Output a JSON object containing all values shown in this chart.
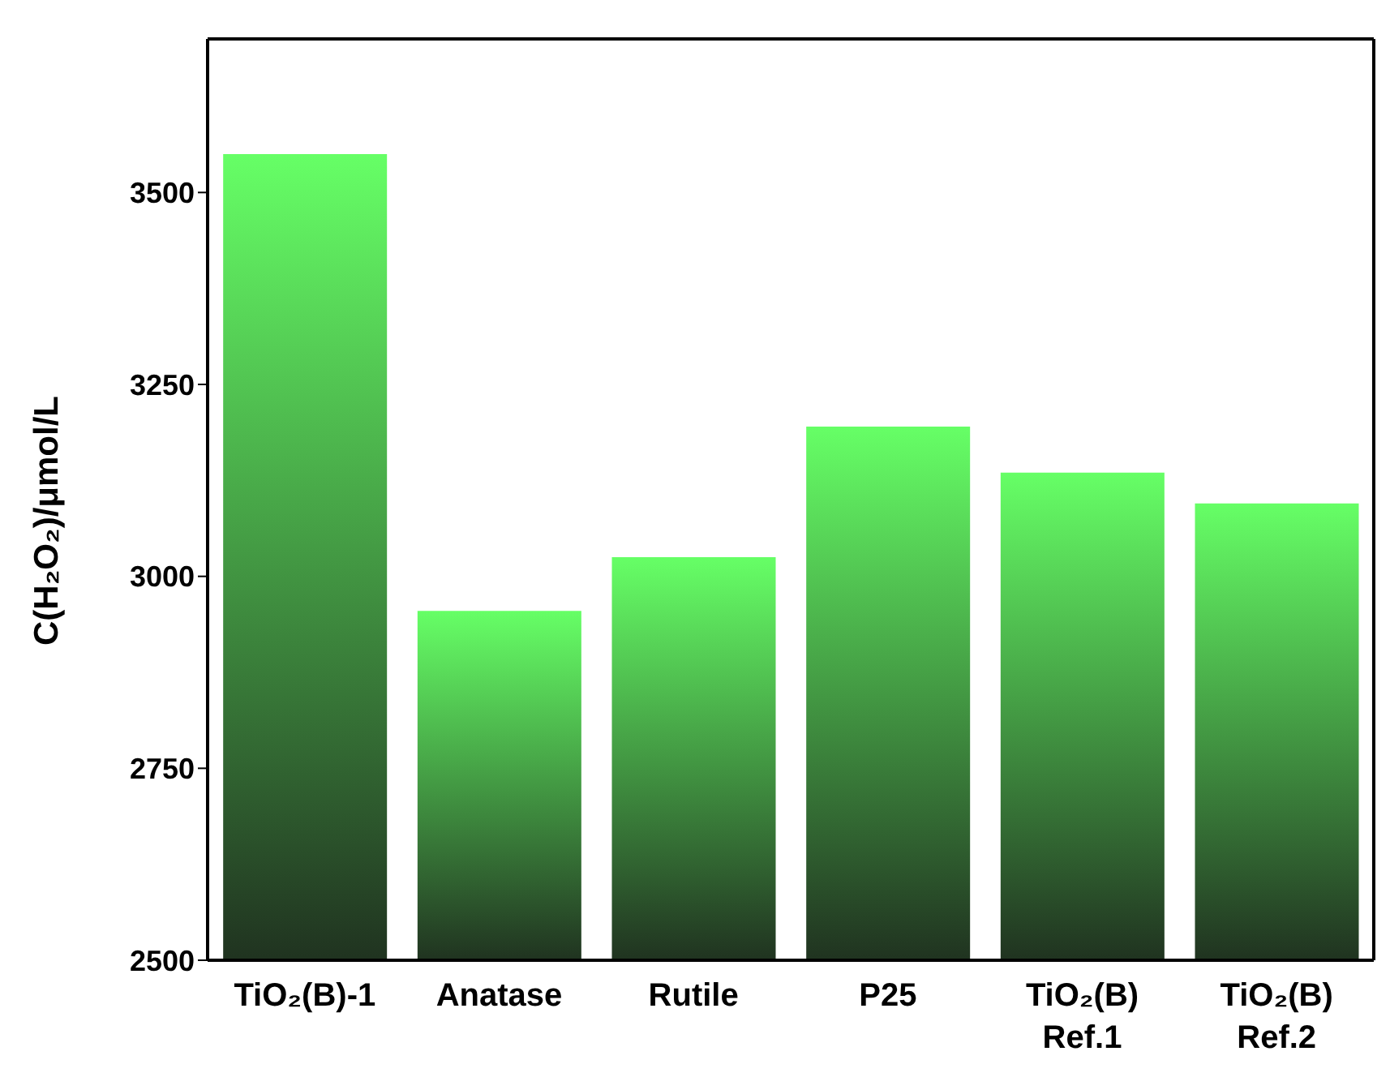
{
  "chart_data": {
    "type": "bar",
    "ylabel": "C(H₂O₂)/μmol/L",
    "categories": [
      "TiO₂(B)-1",
      "Anatase",
      "Rutile",
      "P25",
      "TiO₂(B) Ref.1",
      "TiO₂(B) Ref.2"
    ],
    "values": [
      3550,
      2955,
      3025,
      3195,
      3135,
      3095
    ],
    "color": "#66ff66",
    "ylim": [
      2500,
      3700
    ],
    "yticks": [
      2500,
      2750,
      3000,
      3250,
      3500
    ],
    "grid": false
  }
}
